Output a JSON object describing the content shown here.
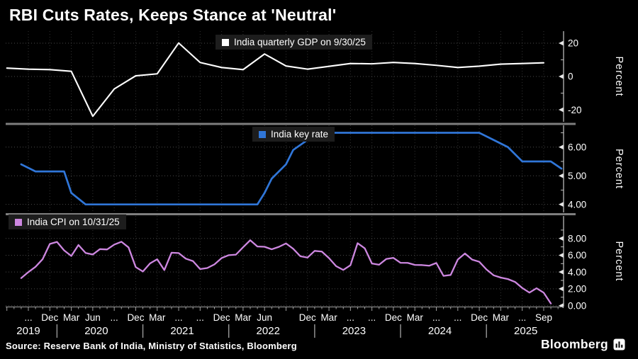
{
  "title": "RBI Cuts Rates, Keeps Stance at 'Neutral'",
  "source": "Source: Reserve Bank of India, Ministry of Statistics, Bloomberg",
  "brand": {
    "name": "Bloomberg"
  },
  "colors": {
    "background": "#000000",
    "gdp_line": "#ffffff",
    "key_rate_line": "#3076d8",
    "cpi_line": "#cd87e0",
    "grid_h": "#4a4a4a",
    "grid_v": "#333333",
    "panel_separator": "#7e7e7e",
    "axis": "#c9c9c9",
    "text": "#ffffff",
    "legend_bg": "#1d1d1d"
  },
  "x_axis": {
    "range": [
      "Jun 2019",
      "Dec 2025"
    ],
    "month_ticks": [
      {
        "m": 3,
        "label": "..."
      },
      {
        "m": 6,
        "label": "Dec"
      },
      {
        "m": 9,
        "label": "Mar"
      },
      {
        "m": 12,
        "label": "Jun"
      },
      {
        "m": 15,
        "label": "..."
      },
      {
        "m": 18,
        "label": "Dec"
      },
      {
        "m": 21,
        "label": "Mar"
      },
      {
        "m": 24,
        "label": "..."
      },
      {
        "m": 27,
        "label": "..."
      },
      {
        "m": 30,
        "label": "Dec"
      },
      {
        "m": 33,
        "label": "Mar"
      },
      {
        "m": 36,
        "label": "Jun"
      },
      {
        "m": 39,
        "label": ""
      },
      {
        "m": 42,
        "label": "Dec"
      },
      {
        "m": 45,
        "label": "Mar"
      },
      {
        "m": 48,
        "label": "..."
      },
      {
        "m": 51,
        "label": "..."
      },
      {
        "m": 54,
        "label": "Dec"
      },
      {
        "m": 57,
        "label": "Mar"
      },
      {
        "m": 60,
        "label": "..."
      },
      {
        "m": 63,
        "label": "..."
      },
      {
        "m": 66,
        "label": "Dec"
      },
      {
        "m": 69,
        "label": "Mar"
      },
      {
        "m": 72,
        "label": "..."
      },
      {
        "m": 75,
        "label": "Sep"
      }
    ],
    "years": [
      {
        "label": "2019",
        "center_m": 3
      },
      {
        "label": "2020",
        "center_m": 12.5
      },
      {
        "label": "2021",
        "center_m": 24.5
      },
      {
        "label": "2022",
        "center_m": 36.5
      },
      {
        "label": "2023",
        "center_m": 48.5
      },
      {
        "label": "2024",
        "center_m": 60.5
      },
      {
        "label": "2025",
        "center_m": 72.5
      }
    ],
    "year_separators_m": [
      7,
      19,
      31,
      43,
      55,
      67
    ]
  },
  "chart_data": [
    {
      "type": "line",
      "panel": "top",
      "title_legend": "India quarterly GDP on 9/30/25",
      "ylabel": "Percent",
      "yticks": [
        20,
        0,
        -20
      ],
      "ytick_labels": [
        "20",
        "0",
        "-20"
      ],
      "ylim": [
        -27.2,
        27.2
      ],
      "color": "#ffffff",
      "start_m": 0,
      "step_m": 3,
      "x": [
        "Jun 2019",
        "Sep 2019",
        "Dec 2019",
        "Mar 2020",
        "Jun 2020",
        "Sep 2020",
        "Dec 2020",
        "Mar 2021",
        "Jun 2021",
        "Sep 2021",
        "Dec 2021",
        "Mar 2022",
        "Jun 2022",
        "Sep 2022",
        "Dec 2022",
        "Mar 2023",
        "Jun 2023",
        "Sep 2023",
        "Dec 2023",
        "Mar 2024",
        "Jun 2024",
        "Sep 2024",
        "Dec 2024",
        "Mar 2025",
        "Jun 2025",
        "Sep 2025"
      ],
      "values": [
        5.0,
        4.4,
        4.1,
        3.1,
        -23.9,
        -7.5,
        0.4,
        1.6,
        20.1,
        8.4,
        5.4,
        4.1,
        13.5,
        6.3,
        4.4,
        6.1,
        7.8,
        7.6,
        8.4,
        7.8,
        6.7,
        5.4,
        6.2,
        7.4,
        7.8,
        8.2
      ]
    },
    {
      "type": "line",
      "panel": "middle",
      "title_legend": "India key rate",
      "ylabel": "Percent",
      "yticks": [
        6,
        5,
        4
      ],
      "ytick_labels": [
        "6.00",
        "5.00",
        "4.00"
      ],
      "ylim": [
        3.72,
        6.76
      ],
      "color": "#3076d8",
      "points": [
        {
          "date": "Aug 2019",
          "m": 2,
          "v": 5.4
        },
        {
          "date": "Oct 2019",
          "m": 4,
          "v": 5.15
        },
        {
          "date": "Feb 2020",
          "m": 8,
          "v": 5.15
        },
        {
          "date": "Mar 2020",
          "m": 9,
          "v": 4.4
        },
        {
          "date": "May 2020",
          "m": 11,
          "v": 4.0
        },
        {
          "date": "Apr 2022",
          "m": 35,
          "v": 4.0
        },
        {
          "date": "May 2022",
          "m": 36,
          "v": 4.4
        },
        {
          "date": "Jun 2022",
          "m": 37,
          "v": 4.9
        },
        {
          "date": "Aug 2022",
          "m": 39,
          "v": 5.4
        },
        {
          "date": "Sep 2022",
          "m": 40,
          "v": 5.9
        },
        {
          "date": "Dec 2022",
          "m": 42,
          "v": 6.25
        },
        {
          "date": "Feb 2023",
          "m": 44,
          "v": 6.5
        },
        {
          "date": "Dec 2024",
          "m": 66,
          "v": 6.5
        },
        {
          "date": "Feb 2025",
          "m": 68,
          "v": 6.25
        },
        {
          "date": "Apr 2025",
          "m": 70,
          "v": 6.0
        },
        {
          "date": "Jun 2025",
          "m": 72,
          "v": 5.5
        },
        {
          "date": "Oct 2025",
          "m": 76,
          "v": 5.5
        },
        {
          "date": "Dec 2025",
          "m": 78,
          "v": 5.25
        }
      ]
    },
    {
      "type": "line",
      "panel": "bottom",
      "title_legend": "India CPI on 10/31/25",
      "ylabel": "Percent",
      "yticks": [
        8,
        6,
        4,
        2,
        0
      ],
      "ytick_labels": [
        "8.00",
        "6.00",
        "4.00",
        "2.00",
        "0.00"
      ],
      "ylim": [
        -0.12,
        10.68
      ],
      "color": "#cd87e0",
      "start_m": 2,
      "step_m": 1,
      "x_start": "Aug 2019",
      "x_end": "Oct 2025",
      "values": [
        3.28,
        3.99,
        4.62,
        5.54,
        7.35,
        7.59,
        6.58,
        5.91,
        7.22,
        6.27,
        6.09,
        6.73,
        6.69,
        7.27,
        7.61,
        6.93,
        4.59,
        4.06,
        5.03,
        5.52,
        4.23,
        6.3,
        6.26,
        5.59,
        5.3,
        4.35,
        4.48,
        4.91,
        5.66,
        6.01,
        6.07,
        6.95,
        7.79,
        7.04,
        7.01,
        6.71,
        7.0,
        7.41,
        6.77,
        5.88,
        5.72,
        6.52,
        6.44,
        5.66,
        4.7,
        4.25,
        4.81,
        7.44,
        6.83,
        5.02,
        4.87,
        5.55,
        5.69,
        5.1,
        5.09,
        4.85,
        4.83,
        4.75,
        5.08,
        3.54,
        3.65,
        5.49,
        6.21,
        5.48,
        5.22,
        4.31,
        3.61,
        3.34,
        3.16,
        2.82,
        2.1,
        1.55,
        2.07,
        1.54,
        0.25
      ]
    }
  ]
}
